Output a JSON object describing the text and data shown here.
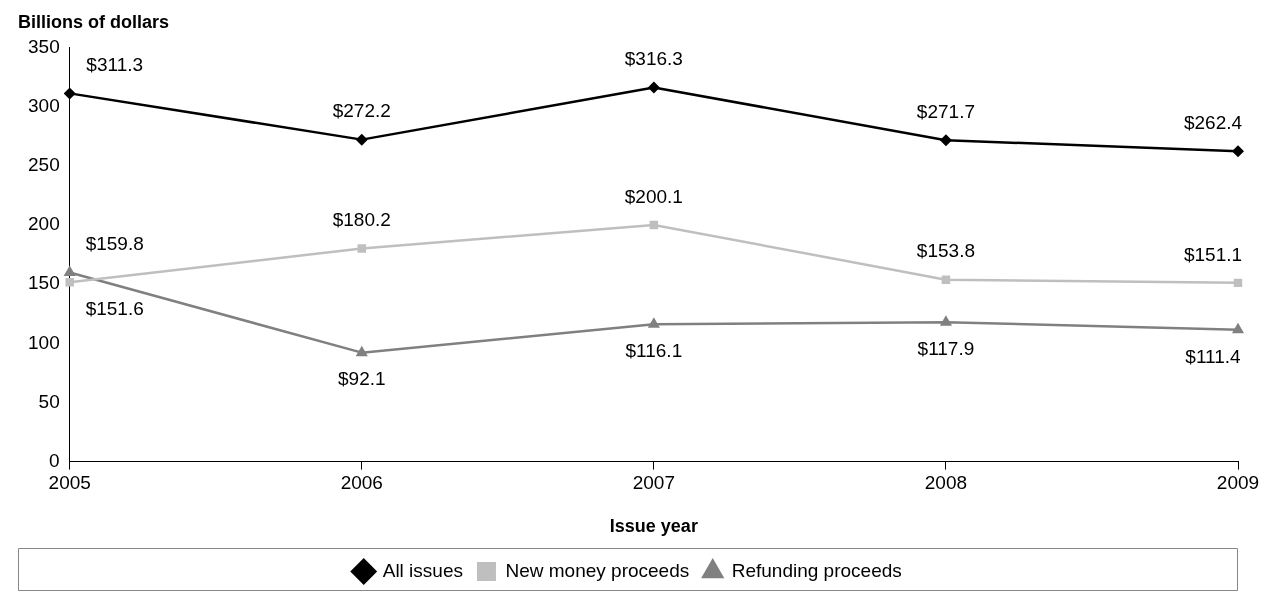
{
  "chart_data": {
    "type": "line",
    "ylabel": "Billions of dollars",
    "xlabel": "Issue year",
    "categories": [
      "2005",
      "2006",
      "2007",
      "2008",
      "2009"
    ],
    "series": [
      {
        "name": "All issues",
        "color": "#000000",
        "marker": "diamond",
        "values": [
          311.3,
          272.2,
          316.3,
          271.7,
          262.4
        ],
        "value_labels": [
          "$311.3",
          "$272.2",
          "$316.3",
          "$271.7",
          "$262.4"
        ]
      },
      {
        "name": "New money proceeds",
        "color": "#bfbfbf",
        "marker": "square",
        "values": [
          151.6,
          180.2,
          200.1,
          153.8,
          151.1
        ],
        "value_labels": [
          "$151.6",
          "$180.2",
          "$200.1",
          "$153.8",
          "$151.1"
        ]
      },
      {
        "name": "Refunding proceeds",
        "color": "#808080",
        "marker": "triangle",
        "values": [
          159.8,
          92.1,
          116.1,
          117.9,
          111.4
        ],
        "value_labels": [
          "$159.8",
          "$92.1",
          "$116.1",
          "$117.9",
          "$111.4"
        ]
      }
    ],
    "ylim": [
      0,
      350
    ],
    "yticks": [
      0,
      50,
      100,
      150,
      200,
      250,
      300,
      350
    ],
    "grid": false,
    "legend": "bottom",
    "line_style": "solid"
  }
}
